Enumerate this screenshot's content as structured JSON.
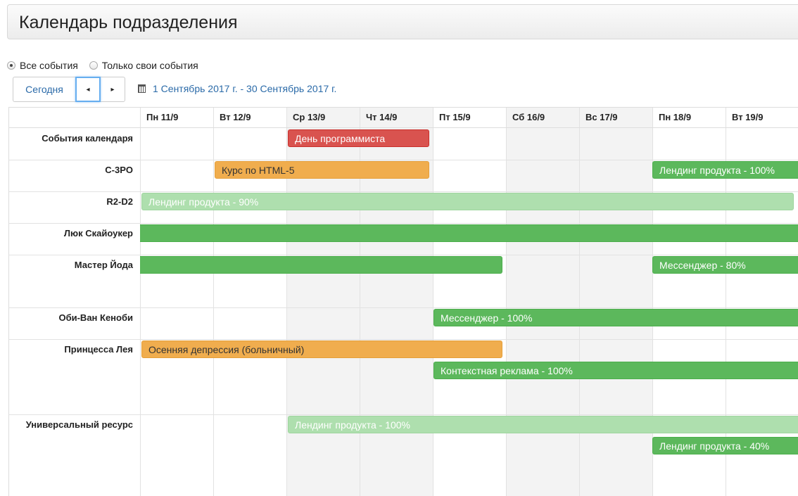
{
  "page": {
    "title": "Календарь подразделения"
  },
  "filters": {
    "all_events": "Все события",
    "own_events": "Только свои события",
    "selected": "all"
  },
  "toolbar": {
    "today_label": "Сегодня",
    "prev_glyph": "◂",
    "next_glyph": "▸",
    "date_range": "1 Сентябрь 2017 г. - 30 Сентябрь 2017 г.",
    "calendar_icon": "calendar-icon"
  },
  "days": [
    {
      "label": "Пн 11/9",
      "weekend": false
    },
    {
      "label": "Вт 12/9",
      "weekend": false
    },
    {
      "label": "Ср 13/9",
      "weekend": true
    },
    {
      "label": "Чт 14/9",
      "weekend": true
    },
    {
      "label": "Пт 15/9",
      "weekend": false
    },
    {
      "label": "Сб 16/9",
      "weekend": true
    },
    {
      "label": "Вс 17/9",
      "weekend": true
    },
    {
      "label": "Пн 18/9",
      "weekend": false
    },
    {
      "label": "Вт 19/9",
      "weekend": false
    }
  ],
  "resources": [
    "События календаря",
    "C-3PO",
    "R2-D2",
    "Люк Скайоукер",
    "Мастер Йода",
    "Оби-Ван Кеноби",
    "Принцесса Лея",
    "Универсальный ресурс"
  ],
  "colors": {
    "red": "#d9534f",
    "orange": "#f0ad4e",
    "green": "#5cb85c",
    "light_green": "#aedfae",
    "link": "#2a6aa8"
  },
  "events": [
    {
      "text": "День программиста"
    },
    {
      "text": "Курс по HTML-5"
    },
    {
      "text": "Лендинг продукта - 100%"
    },
    {
      "text": "Лендинг продукта - 90%"
    },
    {
      "text": ""
    },
    {
      "text": ""
    },
    {
      "text": "Мессенджер - 80%"
    },
    {
      "text": "Мессенджер - 100%"
    },
    {
      "text": "Осенняя депрессия (больничный)"
    },
    {
      "text": "Контекстная реклама - 100%"
    },
    {
      "text": "Лендинг продукта - 100%"
    },
    {
      "text": "Лендинг продукта - 40%"
    }
  ]
}
